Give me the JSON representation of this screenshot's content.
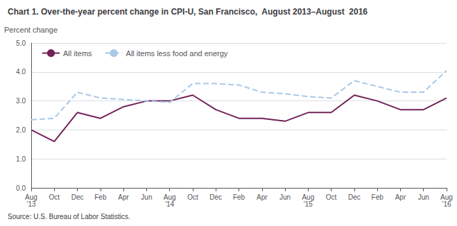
{
  "chart_data": {
    "type": "line",
    "title": "Chart 1. Over-the-year percent change in CPI-U, San Francisco,  August 2013–August  2016",
    "y_label": "Percent change",
    "source": "Source: U.S. Bureau of Labor Statistics.",
    "categories": [
      "Aug\n'13",
      "Oct",
      "Dec",
      "Feb",
      "Apr",
      "Jun",
      "Aug\n'14",
      "Oct",
      "Dec",
      "Feb",
      "Apr",
      "Jun",
      "Aug\n'15",
      "Oct",
      "Dec",
      "Feb",
      "Apr",
      "Jun",
      "Aug\n'16"
    ],
    "series": [
      {
        "name": "All items",
        "color": "#722257",
        "line_style": "solid",
        "values": [
          2.0,
          1.6,
          2.6,
          2.4,
          2.8,
          3.0,
          3.0,
          3.2,
          2.7,
          2.4,
          2.4,
          2.3,
          2.6,
          2.6,
          3.2,
          3.0,
          2.7,
          2.7,
          3.1
        ]
      },
      {
        "name": "All items less food and energy",
        "color": "#a8c8e8",
        "line_style": "dashed",
        "values": [
          2.35,
          2.4,
          3.3,
          3.1,
          3.05,
          3.0,
          2.95,
          3.6,
          3.6,
          3.55,
          3.3,
          3.25,
          3.15,
          3.1,
          3.7,
          3.5,
          3.3,
          3.3,
          4.05
        ]
      }
    ],
    "ylim": [
      0.0,
      5.0
    ],
    "yticks": [
      {
        "value": 0,
        "label": "0.0"
      },
      {
        "value": 1,
        "label": "1.0"
      },
      {
        "value": 2,
        "label": "2.0"
      },
      {
        "value": 3,
        "label": "3.0"
      },
      {
        "value": 4,
        "label": "4.0"
      },
      {
        "value": 5,
        "label": "5.0"
      }
    ],
    "grid": true,
    "legend": "upper left"
  }
}
